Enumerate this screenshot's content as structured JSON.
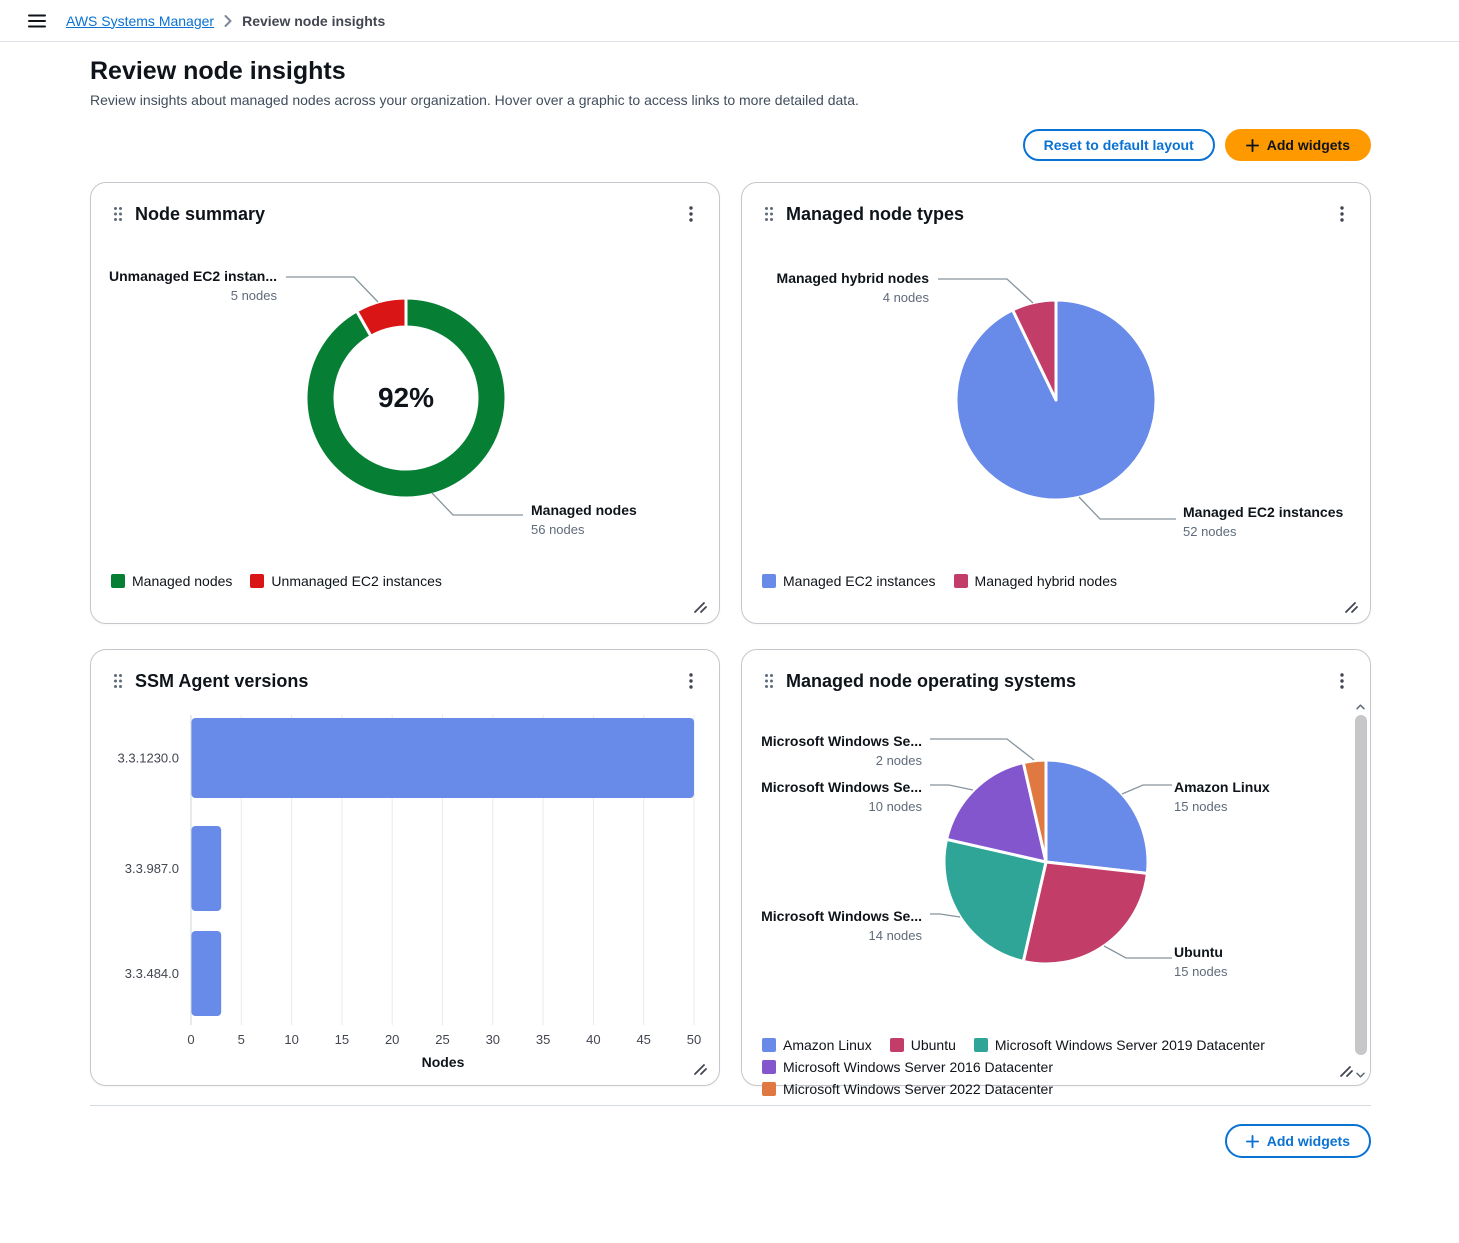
{
  "topbar": {
    "breadcrumb": {
      "link": "AWS Systems Manager",
      "current": "Review node insights"
    }
  },
  "page": {
    "title": "Review node insights",
    "description": "Review insights about managed nodes across your organization. Hover over a graphic to access links to more detailed data.",
    "reset_button": "Reset to default layout",
    "add_widgets_button": "Add widgets",
    "footer_add_widgets_button": "Add widgets"
  },
  "widgets": {
    "node_summary": {
      "title": "Node summary",
      "callouts": [
        {
          "label": "Unmanaged EC2 instan...",
          "sublabel": "5 nodes"
        },
        {
          "label": "Managed nodes",
          "sublabel": "56 nodes"
        }
      ],
      "chart_data": {
        "type": "donut",
        "center_label": "92%",
        "series": [
          {
            "name": "Managed nodes",
            "value": 56,
            "color": "#067f35"
          },
          {
            "name": "Unmanaged EC2 instances",
            "value": 5,
            "color": "#d91515"
          }
        ]
      }
    },
    "node_types": {
      "title": "Managed node types",
      "callouts": [
        {
          "label": "Managed hybrid nodes",
          "sublabel": "4 nodes"
        },
        {
          "label": "Managed EC2 instances",
          "sublabel": "52 nodes"
        }
      ],
      "chart_data": {
        "type": "pie",
        "series": [
          {
            "name": "Managed EC2 instances",
            "value": 52,
            "color": "#688ae8"
          },
          {
            "name": "Managed hybrid nodes",
            "value": 4,
            "color": "#c33d69"
          }
        ]
      }
    },
    "agent_versions": {
      "title": "SSM Agent versions",
      "chart_data": {
        "type": "bar",
        "orientation": "horizontal",
        "categories": [
          "3.3.1230.0",
          "3.3.987.0",
          "3.3.484.0"
        ],
        "values": [
          50,
          3,
          3
        ],
        "xlabel": "Nodes",
        "xlim": [
          0,
          50
        ],
        "xticks": [
          0,
          5,
          10,
          15,
          20,
          25,
          30,
          35,
          40,
          45,
          50
        ],
        "bar_color": "#688ae8"
      }
    },
    "operating_systems": {
      "title": "Managed node operating systems",
      "callouts": [
        {
          "label": "Microsoft Windows Se...",
          "sublabel": "2 nodes"
        },
        {
          "label": "Microsoft Windows Se...",
          "sublabel": "10 nodes"
        },
        {
          "label": "Amazon Linux",
          "sublabel": "15 nodes"
        },
        {
          "label": "Microsoft Windows Se...",
          "sublabel": "14 nodes"
        },
        {
          "label": "Ubuntu",
          "sublabel": "15 nodes"
        }
      ],
      "chart_data": {
        "type": "pie",
        "series": [
          {
            "name": "Amazon Linux",
            "value": 15,
            "color": "#688ae8"
          },
          {
            "name": "Ubuntu",
            "value": 15,
            "color": "#c33d69"
          },
          {
            "name": "Microsoft Windows Server 2019 Datacenter",
            "value": 14,
            "color": "#2ea597"
          },
          {
            "name": "Microsoft Windows Server 2016 Datacenter",
            "value": 10,
            "color": "#8456ce"
          },
          {
            "name": "Microsoft Windows Server 2022 Datacenter",
            "value": 2,
            "color": "#e07941"
          }
        ]
      }
    }
  },
  "colors": {
    "accent": "#0972d3",
    "primary_button": "#ff9900",
    "positive": "#067f35",
    "negative": "#d91515"
  }
}
